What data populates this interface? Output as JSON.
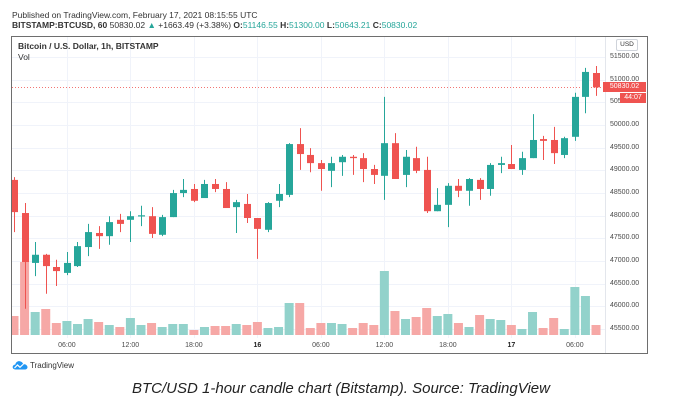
{
  "header": {
    "published": "Published on TradingView.com, February 17, 2021 08:15:55 UTC",
    "symbol": "BITSTAMP:BTCUSD, 60",
    "last": "50830.02",
    "change_arrow": "▲",
    "change": "+1663.49 (+3.38%)",
    "ohlc": [
      {
        "label": "O:",
        "value": "51146.55"
      },
      {
        "label": "H:",
        "value": "51300.00"
      },
      {
        "label": "L:",
        "value": "50643.21"
      },
      {
        "label": "C:",
        "value": "50830.02"
      }
    ]
  },
  "legend": {
    "title": "Bitcoin / U.S. Dollar, 1h, BITSTAMP",
    "vol": "Vol"
  },
  "price_axis": {
    "currency": "USD",
    "last_price_label": "50830.02",
    "countdown": "44:07"
  },
  "footer": {
    "logo_text": "TradingView",
    "caption": "BTC/USD 1-hour candle chart (Bitstamp). Source: TradingView"
  },
  "colors": {
    "up": "#26a69a",
    "down": "#ef5350",
    "up_volume": "#92d2cb",
    "down_volume": "#f6a8a6",
    "grid": "#f0f3fa",
    "logo": "#2196f3"
  },
  "chart_data": {
    "type": "candlestick",
    "title": "Bitcoin / U.S. Dollar, 1h, BITSTAMP",
    "symbol": "BITSTAMP:BTCUSD",
    "interval": "1h",
    "xlabel": "",
    "ylabel": "USD",
    "ylim": [
      45305,
      51940
    ],
    "grid": true,
    "legend_position": "top-left",
    "last_price": 50830.02,
    "y_ticks": [
      45500,
      46000,
      46500,
      47000,
      47500,
      48000,
      48500,
      49000,
      49500,
      50000,
      50500,
      51000,
      51500
    ],
    "x_ticks": [
      {
        "label": "06:00",
        "index": 5,
        "bold": false
      },
      {
        "label": "12:00",
        "index": 11,
        "bold": false
      },
      {
        "label": "18:00",
        "index": 17,
        "bold": false
      },
      {
        "label": "16",
        "index": 23,
        "bold": true
      },
      {
        "label": "06:00",
        "index": 29,
        "bold": false
      },
      {
        "label": "12:00",
        "index": 35,
        "bold": false
      },
      {
        "label": "18:00",
        "index": 41,
        "bold": false
      },
      {
        "label": "17",
        "index": 47,
        "bold": true
      },
      {
        "label": "06:00",
        "index": 53,
        "bold": false
      }
    ],
    "open": [
      48790,
      48060,
      46960,
      47140,
      46870,
      46740,
      46890,
      47310,
      47620,
      47550,
      47910,
      47910,
      47990,
      47990,
      47580,
      47970,
      48500,
      48590,
      48390,
      48700,
      48590,
      48190,
      48260,
      47950,
      47690,
      48330,
      48460,
      49580,
      49340,
      49160,
      48990,
      49180,
      49300,
      49270,
      49030,
      48880,
      49600,
      48900,
      49270,
      49010,
      48100,
      48240,
      48660,
      48550,
      48790,
      48590,
      49120,
      49140,
      49010,
      49270,
      49690,
      49670,
      49340,
      49740,
      50620,
      51146.55
    ],
    "high": [
      48850,
      48280,
      47420,
      47160,
      47030,
      47200,
      47420,
      47820,
      47770,
      47990,
      48040,
      48100,
      48220,
      48190,
      48020,
      48570,
      48810,
      48700,
      48790,
      48810,
      48740,
      48350,
      48480,
      47950,
      48300,
      48700,
      49600,
      49930,
      49490,
      49230,
      49300,
      49340,
      49340,
      49380,
      49120,
      50620,
      49820,
      49450,
      49520,
      49300,
      48610,
      48720,
      48810,
      48830,
      48830,
      49160,
      49300,
      49560,
      49410,
      50240,
      49760,
      49960,
      49740,
      50710,
      51260,
      51300.0
    ],
    "low": [
      47640,
      45950,
      46670,
      46280,
      46450,
      46690,
      46870,
      47110,
      47270,
      47360,
      47640,
      47420,
      47770,
      47510,
      47550,
      47970,
      48410,
      48300,
      48390,
      48520,
      48170,
      47620,
      47840,
      47050,
      47640,
      48190,
      48410,
      49010,
      48960,
      48550,
      48630,
      48880,
      48900,
      48740,
      48700,
      48350,
      48810,
      48630,
      48940,
      48060,
      48100,
      47750,
      48410,
      48220,
      48350,
      48440,
      48940,
      49030,
      48900,
      49270,
      49230,
      49140,
      49270,
      49650,
      50260,
      50643.21
    ],
    "close": [
      48080,
      46980,
      47140,
      46890,
      46780,
      46960,
      47330,
      47640,
      47550,
      47860,
      47820,
      47990,
      48010,
      47600,
      47970,
      48500,
      48570,
      48330,
      48700,
      48590,
      48170,
      48300,
      47950,
      47710,
      48280,
      48480,
      49580,
      49360,
      49160,
      49030,
      49160,
      49300,
      49270,
      49030,
      48900,
      49600,
      48810,
      49300,
      48990,
      48100,
      48240,
      48660,
      48550,
      48810,
      48590,
      49120,
      49160,
      49030,
      49270,
      49670,
      49650,
      49380,
      49710,
      50620,
      51170,
      50830.02
    ],
    "volume_relative": [
      19,
      73,
      23,
      26,
      12,
      14,
      11,
      16,
      13,
      10,
      8,
      17,
      10,
      12,
      8,
      11,
      11,
      5,
      8,
      9,
      9,
      11,
      10,
      13,
      7,
      8,
      32,
      32,
      7,
      12,
      12,
      11,
      7,
      12,
      10,
      64,
      24,
      16,
      18,
      27,
      19,
      21,
      12,
      8,
      20,
      16,
      15,
      10,
      6,
      23,
      7,
      17,
      6,
      48,
      39,
      10
    ]
  }
}
